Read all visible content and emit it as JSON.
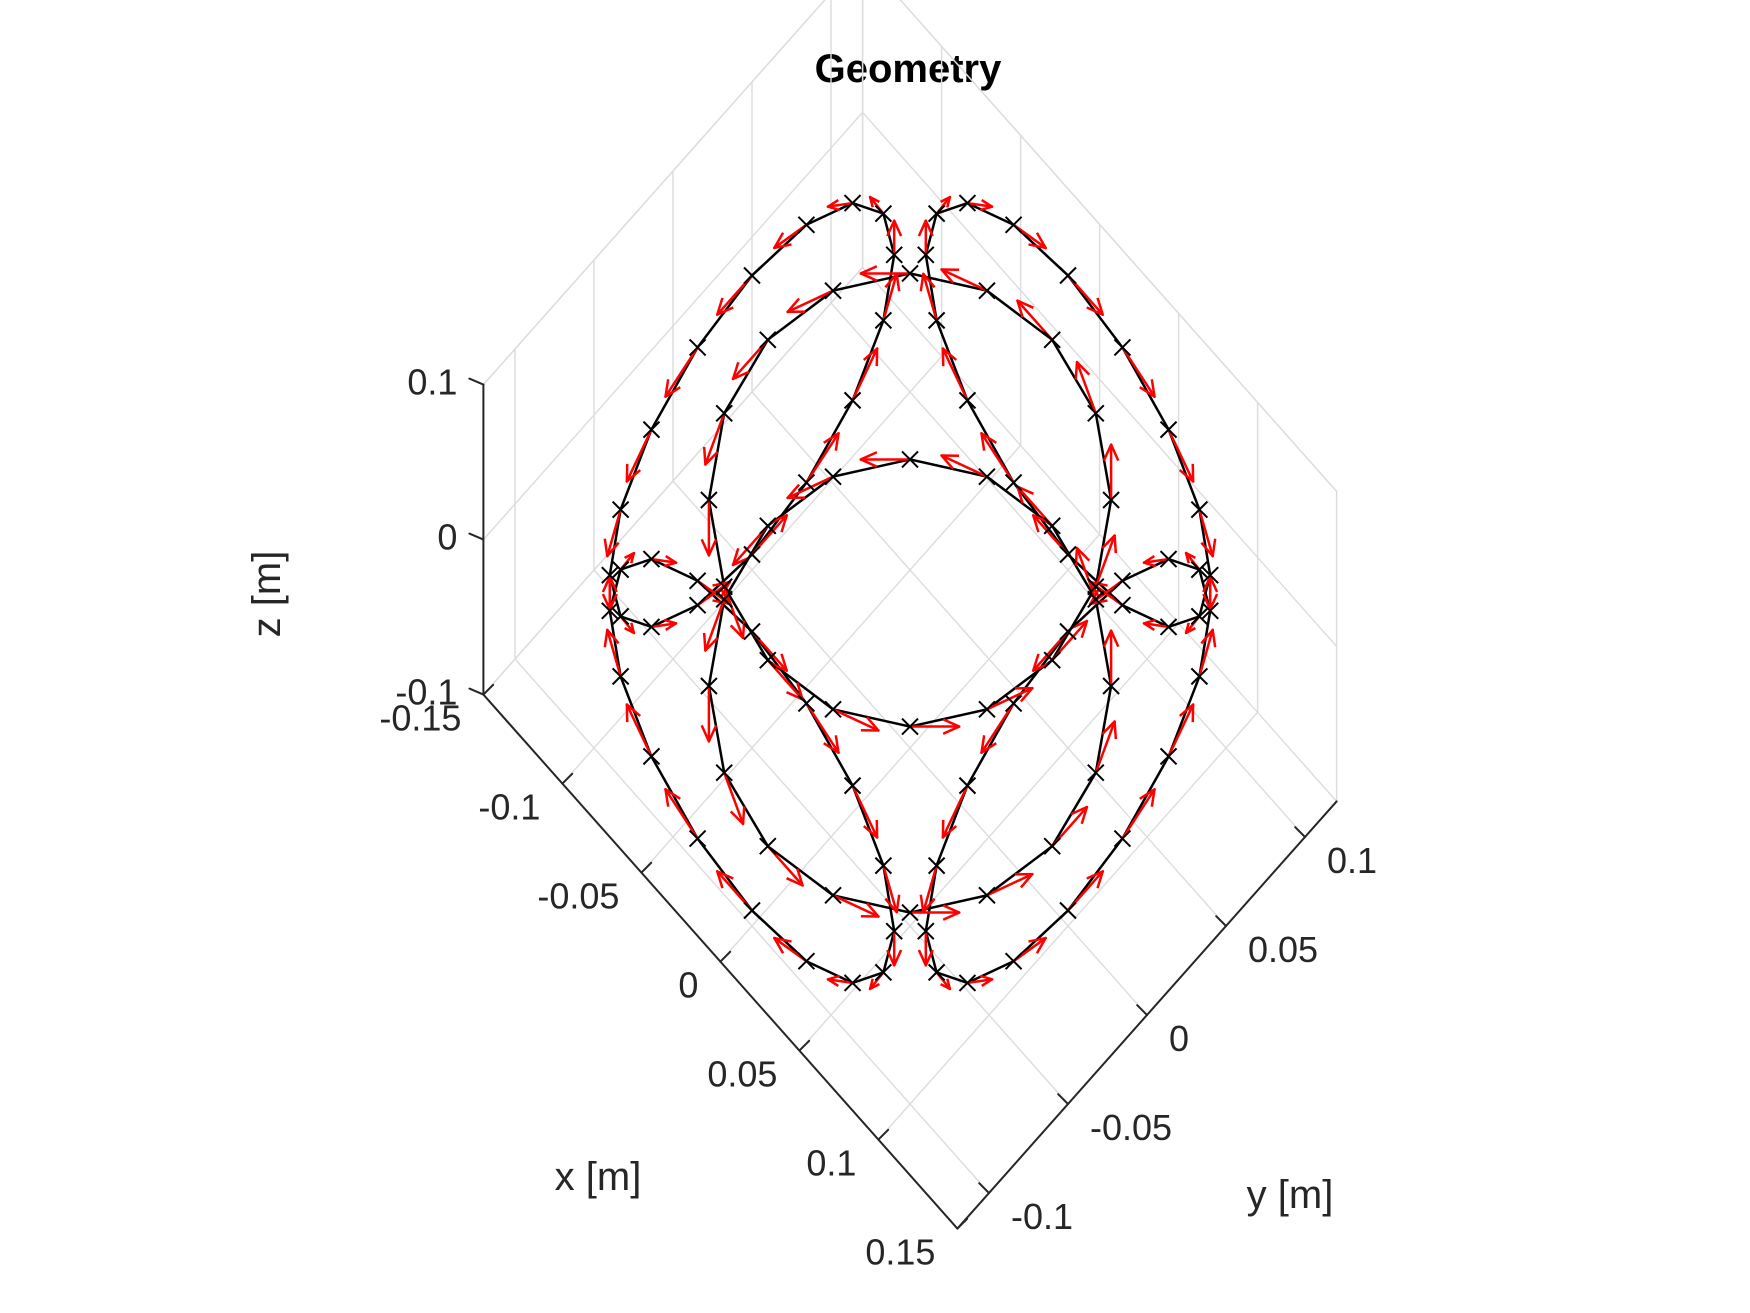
{
  "chart_data": {
    "type": "3d-quiver",
    "title": "Geometry",
    "xlabel": "x [m]",
    "ylabel": "y [m]",
    "zlabel": "z [m]",
    "xlim": [
      -0.15,
      0.15
    ],
    "ylim": [
      -0.12,
      0.12
    ],
    "zlim": [
      -0.1,
      0.1
    ],
    "xticks": [
      -0.15,
      -0.1,
      -0.05,
      0,
      0.05,
      0.1,
      0.15
    ],
    "xtick_labels": [
      "-0.15",
      "-0.1",
      "-0.05",
      "0",
      "0.05",
      "0.1",
      "0.15"
    ],
    "yticks": [
      -0.1,
      -0.05,
      0,
      0.05,
      0.1
    ],
    "ytick_labels": [
      "-0.1",
      "-0.05",
      "0",
      "0.05",
      "0.1"
    ],
    "zticks": [
      -0.1,
      0,
      0.1
    ],
    "ztick_labels": [
      "-0.1",
      "0",
      "0.1"
    ],
    "grid": true,
    "view": {
      "azimuth_deg": 45,
      "elevation_deg": 35.26
    },
    "series": [
      {
        "type": "wire-loops",
        "marker": "x",
        "color": "#000000",
        "loops": [
          {
            "center": [
              0.1,
              0,
              0
            ],
            "normal": [
              1,
              0,
              0
            ],
            "radius": 0.09,
            "points": 16
          },
          {
            "center": [
              -0.1,
              0,
              0
            ],
            "normal": [
              1,
              0,
              0
            ],
            "radius": 0.09,
            "points": 16
          },
          {
            "center": [
              0,
              0.1,
              0
            ],
            "normal": [
              0,
              1,
              0
            ],
            "radius": 0.09,
            "points": 16
          },
          {
            "center": [
              0,
              -0.1,
              0
            ],
            "normal": [
              0,
              1,
              0
            ],
            "radius": 0.09,
            "points": 16
          },
          {
            "center": [
              0,
              0,
              0.06
            ],
            "normal": [
              0,
              0,
              1
            ],
            "radius": 0.09,
            "points": 16
          },
          {
            "center": [
              0,
              0,
              -0.06
            ],
            "normal": [
              0,
              0,
              1
            ],
            "radius": 0.09,
            "points": 16
          }
        ]
      },
      {
        "type": "quiver",
        "color": "#ff0000",
        "description": "tangential current direction at each sample point",
        "arrow_length": 0.022
      }
    ],
    "colors": {
      "wire": "#000000",
      "arrow": "#ff0000",
      "grid": "#dcdcdc",
      "axis": "#262626"
    }
  }
}
